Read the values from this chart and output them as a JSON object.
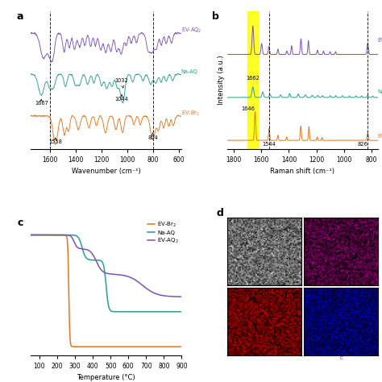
{
  "ftir": {
    "x_range": [
      1750,
      580
    ],
    "ev_br2_color": "#E07820",
    "na_aq_color": "#2A9E8E",
    "ev_aq2_color": "#7B52B8",
    "xlabel": "Wavenumber (cm⁻¹)",
    "dashed_lines": [
      1600,
      804
    ],
    "label_ev_aq2": "EV-AQ₂",
    "label_na_aq": "Na-AQ",
    "label_ev_br2": "EV-Br₂",
    "xticks": [
      1600,
      1400,
      1200,
      1000,
      800,
      600
    ]
  },
  "raman": {
    "x_range": [
      1850,
      750
    ],
    "ev_br2_color": "#E07820",
    "na_aq_color": "#2A9E8E",
    "ev_aq2_color": "#7B52B8",
    "xlabel": "Raman shift (cm⁻¹)",
    "ylabel": "Intensity (a.u.)",
    "yellow_band": [
      1700,
      1625
    ],
    "dashed_lines": [
      1544,
      826
    ],
    "label_ev_aq2": "EV-",
    "label_na_aq": "Na-",
    "label_ev_br2": "EV-",
    "xticks": [
      1800,
      1600,
      1400,
      1200,
      1000,
      800
    ]
  },
  "tga": {
    "x_range": [
      50,
      900
    ],
    "ev_br2_color": "#E07820",
    "na_aq_color": "#2A9E8E",
    "ev_aq2_color": "#7B52B8",
    "xlabel": "Temperature (°C)",
    "legend": [
      "EV-Br₂",
      "Na-AQ",
      "EV-AQ₂"
    ],
    "xticks": [
      100,
      200,
      300,
      400,
      500,
      600,
      700,
      800,
      900
    ]
  },
  "bg_color": "#ffffff",
  "panel_labels": [
    "a",
    "b",
    "c",
    "d"
  ]
}
